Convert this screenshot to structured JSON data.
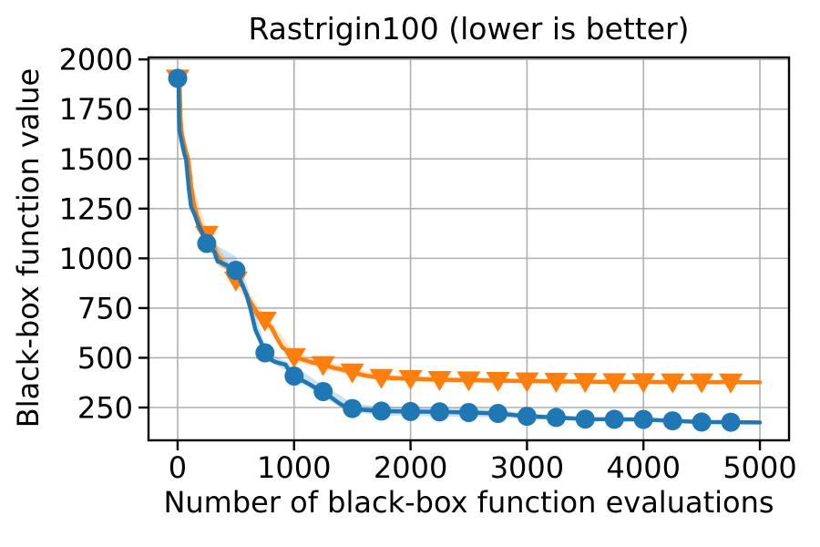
{
  "chart_data": {
    "type": "line",
    "title": "Rastrigin100 (lower is better)",
    "xlabel": "Number of black-box function evaluations",
    "ylabel": "Black-box function value",
    "xlim": [
      -250,
      5250
    ],
    "ylim": [
      85,
      2010
    ],
    "xticks": [
      0,
      1000,
      2000,
      3000,
      4000,
      5000
    ],
    "yticks": [
      250,
      500,
      750,
      1000,
      1250,
      1500,
      1750,
      2000
    ],
    "grid": true,
    "legend": "none",
    "background_color": "#ffffff",
    "grid_color": "#b0b0b0",
    "spine_color": "#000000",
    "marker_interval": 250,
    "series": [
      {
        "id": "orange-triangles",
        "color": "#ff7f0e",
        "band_opacity": 0.22,
        "marker": "triangle-down",
        "marker_x": [
          0,
          250,
          500,
          750,
          1000,
          1250,
          1500,
          1750,
          2000,
          2250,
          2500,
          2750,
          3000,
          3250,
          3500,
          3750,
          4000,
          4250,
          4500,
          4750
        ],
        "line": [
          [
            0,
            1905
          ],
          [
            18,
            1858
          ],
          [
            25,
            1700
          ],
          [
            35,
            1630
          ],
          [
            50,
            1590
          ],
          [
            70,
            1540
          ],
          [
            91,
            1500
          ],
          [
            105,
            1430
          ],
          [
            116,
            1365
          ],
          [
            140,
            1275
          ],
          [
            165,
            1220
          ],
          [
            188,
            1178
          ],
          [
            227,
            1125
          ],
          [
            250,
            1120
          ],
          [
            280,
            1092
          ],
          [
            305,
            1078
          ],
          [
            331,
            1025
          ],
          [
            360,
            1000
          ],
          [
            382,
            971
          ],
          [
            434,
            956
          ],
          [
            470,
            928
          ],
          [
            500,
            890
          ],
          [
            540,
            870
          ],
          [
            564,
            855
          ],
          [
            589,
            817
          ],
          [
            628,
            779
          ],
          [
            667,
            741
          ],
          [
            700,
            710
          ],
          [
            750,
            688
          ],
          [
            809,
            649
          ],
          [
            848,
            604
          ],
          [
            900,
            551
          ],
          [
            964,
            528
          ],
          [
            1000,
            505
          ],
          [
            1080,
            490
          ],
          [
            1160,
            476
          ],
          [
            1250,
            465
          ],
          [
            1340,
            450
          ],
          [
            1420,
            440
          ],
          [
            1500,
            428
          ],
          [
            1600,
            412
          ],
          [
            1700,
            403
          ],
          [
            1750,
            400
          ],
          [
            2000,
            395
          ],
          [
            2250,
            390
          ],
          [
            2500,
            388
          ],
          [
            2750,
            385
          ],
          [
            3000,
            383
          ],
          [
            3250,
            381
          ],
          [
            3500,
            380
          ],
          [
            3750,
            379
          ],
          [
            4000,
            379
          ],
          [
            4250,
            378
          ],
          [
            4500,
            378
          ],
          [
            4750,
            377
          ],
          [
            5000,
            377
          ]
        ],
        "band": {
          "x": [
            0,
            100,
            250,
            500,
            750,
            1000,
            1250,
            1500,
            1750,
            2000,
            2250,
            2500,
            2750,
            3000,
            3250,
            3500,
            3750,
            4000,
            4250,
            4500,
            4750,
            5000
          ],
          "lo": [
            1905,
            1390,
            1090,
            860,
            660,
            480,
            445,
            410,
            385,
            380,
            376,
            374,
            372,
            371,
            370,
            369,
            369,
            368,
            368,
            368,
            367,
            367
          ],
          "hi": [
            1905,
            1420,
            1150,
            915,
            715,
            530,
            485,
            448,
            415,
            410,
            404,
            402,
            398,
            395,
            392,
            391,
            390,
            390,
            389,
            389,
            388,
            388
          ]
        }
      },
      {
        "id": "blue-circles",
        "color": "#1f77b4",
        "band_opacity": 0.22,
        "marker": "circle",
        "marker_x": [
          0,
          250,
          500,
          750,
          1000,
          1250,
          1500,
          1750,
          2000,
          2250,
          2500,
          2750,
          3000,
          3250,
          3500,
          3750,
          4000,
          4250,
          4500,
          4750
        ],
        "line": [
          [
            0,
            1905
          ],
          [
            8,
            1870
          ],
          [
            12,
            1700
          ],
          [
            15,
            1645
          ],
          [
            30,
            1600
          ],
          [
            45,
            1560
          ],
          [
            60,
            1520
          ],
          [
            72,
            1500
          ],
          [
            85,
            1420
          ],
          [
            98,
            1340
          ],
          [
            116,
            1260
          ],
          [
            150,
            1215
          ],
          [
            176,
            1170
          ],
          [
            215,
            1124
          ],
          [
            250,
            1075
          ],
          [
            280,
            1058
          ],
          [
            318,
            1030
          ],
          [
            343,
            985
          ],
          [
            400,
            972
          ],
          [
            450,
            958
          ],
          [
            500,
            940
          ],
          [
            560,
            862
          ],
          [
            590,
            820
          ],
          [
            628,
            741
          ],
          [
            667,
            642
          ],
          [
            719,
            573
          ],
          [
            750,
            525
          ],
          [
            783,
            496
          ],
          [
            830,
            481
          ],
          [
            874,
            473
          ],
          [
            926,
            466
          ],
          [
            960,
            432
          ],
          [
            1000,
            408
          ],
          [
            1060,
            390
          ],
          [
            1120,
            371
          ],
          [
            1180,
            350
          ],
          [
            1250,
            330
          ],
          [
            1320,
            300
          ],
          [
            1390,
            270
          ],
          [
            1450,
            251
          ],
          [
            1500,
            245
          ],
          [
            1600,
            238
          ],
          [
            1700,
            234
          ],
          [
            1750,
            232
          ],
          [
            2000,
            230
          ],
          [
            2250,
            228
          ],
          [
            2500,
            225
          ],
          [
            2750,
            220
          ],
          [
            3000,
            206
          ],
          [
            3250,
            200
          ],
          [
            3500,
            192
          ],
          [
            3750,
            191
          ],
          [
            4000,
            190
          ],
          [
            4250,
            183
          ],
          [
            4500,
            177
          ],
          [
            4750,
            176
          ],
          [
            5000,
            175
          ]
        ],
        "band": {
          "x": [
            0,
            100,
            250,
            350,
            500,
            600,
            700,
            750,
            850,
            950,
            1000,
            1100,
            1250,
            1400,
            1500,
            1750,
            2000,
            2250,
            2500,
            2750,
            3000,
            3250,
            3500,
            3750,
            4000,
            4250,
            4500,
            4750,
            5000
          ],
          "lo": [
            1905,
            1330,
            1060,
            960,
            920,
            790,
            580,
            500,
            460,
            430,
            390,
            360,
            305,
            250,
            228,
            210,
            207,
            205,
            202,
            200,
            192,
            188,
            183,
            182,
            181,
            176,
            172,
            171,
            170
          ],
          "hi": [
            1905,
            1350,
            1100,
            1060,
            1010,
            860,
            660,
            560,
            500,
            480,
            440,
            420,
            360,
            310,
            270,
            255,
            252,
            250,
            246,
            240,
            220,
            212,
            200,
            199,
            198,
            190,
            182,
            181,
            180
          ]
        }
      }
    ]
  }
}
